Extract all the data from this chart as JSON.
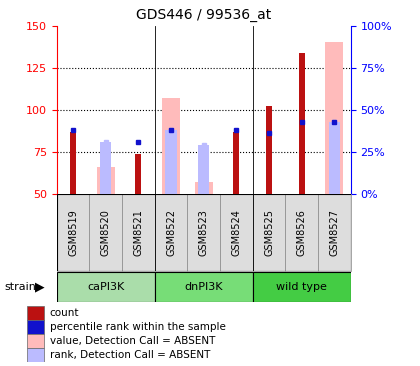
{
  "title": "GDS446 / 99536_at",
  "samples": [
    "GSM8519",
    "GSM8520",
    "GSM8521",
    "GSM8522",
    "GSM8523",
    "GSM8524",
    "GSM8525",
    "GSM8526",
    "GSM8527"
  ],
  "groups": [
    {
      "name": "caPI3K",
      "start": 0,
      "end": 3
    },
    {
      "name": "dnPI3K",
      "start": 3,
      "end": 6
    },
    {
      "name": "wild type",
      "start": 6,
      "end": 9
    }
  ],
  "count_values": [
    87,
    null,
    74,
    null,
    null,
    87,
    102,
    134,
    null
  ],
  "rank_values": [
    88,
    null,
    81,
    88,
    null,
    88,
    86,
    93,
    93
  ],
  "absent_value_values": [
    null,
    66,
    null,
    107,
    57,
    null,
    null,
    null,
    140
  ],
  "absent_rank_values": [
    null,
    81,
    null,
    88,
    79,
    null,
    null,
    null,
    93
  ],
  "ylim_left": [
    50,
    150
  ],
  "ylim_right": [
    0,
    100
  ],
  "yticks_left": [
    50,
    75,
    100,
    125,
    150
  ],
  "yticks_right": [
    0,
    25,
    50,
    75,
    100
  ],
  "count_color": "#bb1111",
  "rank_color": "#1111cc",
  "absent_value_color": "#ffbbbb",
  "absent_rank_color": "#bbbbff",
  "background_color": "#ffffff",
  "group_colors": [
    "#aaddaa",
    "#77dd77",
    "#44cc44"
  ],
  "strain_label": "strain",
  "legend_items": [
    {
      "color": "#bb1111",
      "label": "count"
    },
    {
      "color": "#1111cc",
      "label": "percentile rank within the sample"
    },
    {
      "color": "#ffbbbb",
      "label": "value, Detection Call = ABSENT"
    },
    {
      "color": "#bbbbff",
      "label": "rank, Detection Call = ABSENT"
    }
  ]
}
